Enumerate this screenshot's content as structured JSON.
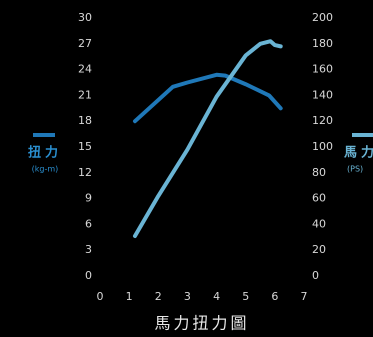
{
  "chart_data": {
    "type": "line",
    "title": "馬力扭力圖",
    "xlim": [
      0,
      7
    ],
    "xticks": [
      0,
      1,
      2,
      3,
      4,
      5,
      6,
      7
    ],
    "ylim": [
      0,
      30
    ],
    "yticks": [
      0,
      3,
      6,
      9,
      12,
      15,
      18,
      21,
      24,
      27,
      30
    ],
    "y2lim": [
      0,
      200
    ],
    "y2ticks": [
      0,
      20,
      40,
      60,
      80,
      100,
      120,
      140,
      160,
      180,
      200
    ],
    "y_unit": "(kg-m)",
    "y2_unit": "(PS)",
    "series": [
      {
        "name": "扭力",
        "color": "#1f78b8",
        "x": [
          1.2,
          2.5,
          3,
          4,
          4.3,
          5,
          5.8,
          6.2
        ],
        "values": [
          18,
          22,
          22.5,
          23.4,
          23.3,
          22.3,
          21,
          19.5
        ]
      },
      {
        "name": "馬力",
        "color": "#6ab4d4",
        "axis": "y2",
        "x": [
          1.2,
          2,
          3,
          4,
          5,
          5.5,
          5.85,
          6,
          6.2
        ],
        "values": [
          31,
          62,
          98,
          139,
          171,
          180,
          182,
          179,
          178
        ]
      }
    ]
  }
}
